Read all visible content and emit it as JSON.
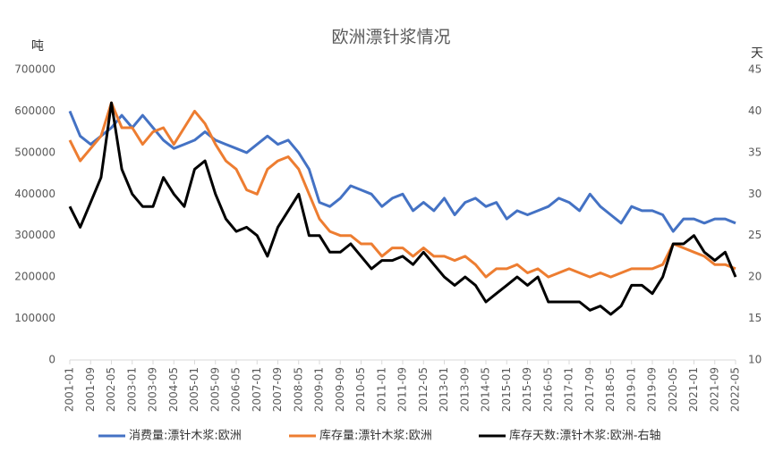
{
  "chart_data": {
    "type": "line",
    "title": "欧洲漂针浆情况",
    "y_label": "吨",
    "y2_label": "天",
    "x": [
      "2001-01",
      "2001-05",
      "2001-09",
      "2002-01",
      "2002-05",
      "2002-09",
      "2003-01",
      "2003-05",
      "2003-09",
      "2004-01",
      "2004-05",
      "2004-09",
      "2005-01",
      "2005-05",
      "2005-09",
      "2006-01",
      "2006-05",
      "2006-09",
      "2007-01",
      "2007-05",
      "2007-09",
      "2008-01",
      "2008-05",
      "2008-09",
      "2009-01",
      "2009-05",
      "2009-09",
      "2010-01",
      "2010-05",
      "2010-09",
      "2011-01",
      "2011-05",
      "2011-09",
      "2012-01",
      "2012-05",
      "2012-09",
      "2013-01",
      "2013-05",
      "2013-09",
      "2014-01",
      "2014-05",
      "2014-09",
      "2015-01",
      "2015-05",
      "2015-09",
      "2016-01",
      "2016-05",
      "2016-09",
      "2017-01",
      "2017-05",
      "2017-09",
      "2018-01",
      "2018-05",
      "2018-09",
      "2019-01",
      "2019-05",
      "2019-09",
      "2020-01",
      "2020-05",
      "2020-09",
      "2021-01",
      "2021-05",
      "2021-09",
      "2022-01",
      "2022-05"
    ],
    "xticks": [
      "2001-01",
      "2001-09",
      "2002-05",
      "2003-01",
      "2003-09",
      "2004-05",
      "2005-01",
      "2005-09",
      "2006-05",
      "2007-01",
      "2007-09",
      "2008-05",
      "2009-01",
      "2009-09",
      "2010-05",
      "2011-01",
      "2011-09",
      "2012-05",
      "2013-01",
      "2013-09",
      "2014-05",
      "2015-01",
      "2015-09",
      "2016-05",
      "2017-01",
      "2017-09",
      "2018-05",
      "2019-01",
      "2019-09",
      "2020-05",
      "2021-01",
      "2021-09",
      "2022-05"
    ],
    "series": [
      {
        "name": "消费量:漂针木浆:欧洲",
        "color": "#4472c4",
        "values": [
          600000,
          540000,
          520000,
          540000,
          560000,
          590000,
          560000,
          590000,
          560000,
          530000,
          510000,
          520000,
          530000,
          550000,
          530000,
          520000,
          510000,
          500000,
          520000,
          540000,
          520000,
          530000,
          500000,
          460000,
          380000,
          370000,
          390000,
          420000,
          410000,
          400000,
          370000,
          390000,
          400000,
          360000,
          380000,
          360000,
          390000,
          350000,
          380000,
          390000,
          370000,
          380000,
          340000,
          360000,
          350000,
          360000,
          370000,
          390000,
          380000,
          360000,
          400000,
          370000,
          350000,
          330000,
          370000,
          360000,
          360000,
          350000,
          310000,
          340000,
          340000,
          330000,
          340000,
          340000,
          330000
        ]
      },
      {
        "name": "库存量:漂针木浆:欧洲",
        "color": "#ed7d31",
        "values": [
          530000,
          480000,
          510000,
          540000,
          620000,
          560000,
          560000,
          520000,
          550000,
          560000,
          520000,
          560000,
          600000,
          570000,
          520000,
          480000,
          460000,
          410000,
          400000,
          460000,
          480000,
          490000,
          460000,
          400000,
          340000,
          310000,
          300000,
          300000,
          280000,
          280000,
          250000,
          270000,
          270000,
          250000,
          270000,
          250000,
          250000,
          240000,
          250000,
          230000,
          200000,
          220000,
          220000,
          230000,
          210000,
          220000,
          200000,
          210000,
          220000,
          210000,
          200000,
          210000,
          200000,
          210000,
          220000,
          220000,
          220000,
          230000,
          280000,
          270000,
          260000,
          250000,
          230000,
          230000,
          220000
        ]
      },
      {
        "name": "库存天数:漂针木浆:欧洲-右轴",
        "color": "#000000",
        "axis": "y2",
        "values": [
          28.5,
          26,
          29,
          32,
          41,
          33,
          30,
          28.5,
          28.5,
          32,
          30,
          28.5,
          33,
          34,
          30,
          27,
          25.5,
          26,
          25,
          22.5,
          26,
          28,
          30,
          25,
          25,
          23,
          23,
          24,
          22.5,
          21,
          22,
          22,
          22.5,
          21.5,
          23,
          21.5,
          20,
          19,
          20,
          19,
          17,
          18,
          19,
          20,
          19,
          20,
          17,
          17,
          17,
          17,
          16,
          16.5,
          15.5,
          16.5,
          19,
          19,
          18,
          20,
          24,
          24,
          25,
          23,
          22,
          23,
          20
        ]
      }
    ],
    "ylim": [
      0,
      700000
    ],
    "yticks": [
      0,
      100000,
      200000,
      300000,
      400000,
      500000,
      600000,
      700000
    ],
    "y2lim": [
      10,
      45
    ],
    "y2ticks": [
      10,
      15,
      20,
      25,
      30,
      35,
      40,
      45
    ]
  }
}
